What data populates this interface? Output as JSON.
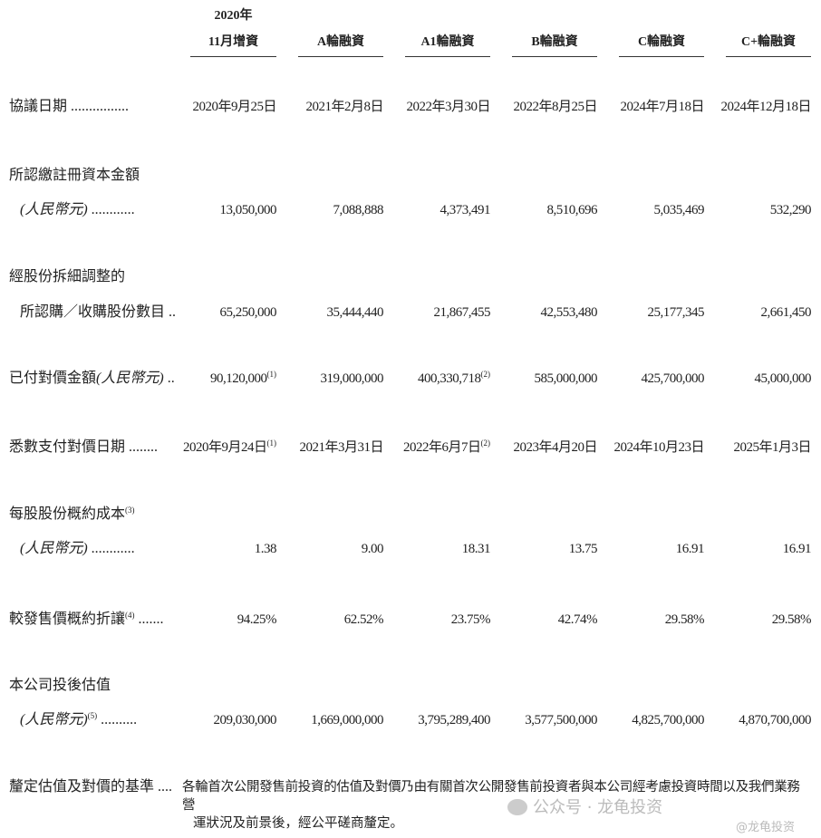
{
  "columns": [
    {
      "line1": "2020年",
      "line2": "11月增資"
    },
    {
      "line1": "",
      "line2": "A輪融資"
    },
    {
      "line1": "",
      "line2": "A1輪融資"
    },
    {
      "line1": "",
      "line2": "B輪融資"
    },
    {
      "line1": "",
      "line2": "C輪融資"
    },
    {
      "line1": "",
      "line2": "C+輪融資"
    }
  ],
  "rows": [
    {
      "label1": "",
      "label2": "協議日期",
      "label2_italic": "",
      "label2_sup": "",
      "dots": "................",
      "values": [
        {
          "v": "2020年9月25日",
          "s": ""
        },
        {
          "v": "2021年2月8日",
          "s": ""
        },
        {
          "v": "2022年3月30日",
          "s": ""
        },
        {
          "v": "2022年8月25日",
          "s": ""
        },
        {
          "v": "2024年7月18日",
          "s": ""
        },
        {
          "v": "2024年12月18日",
          "s": ""
        }
      ]
    },
    {
      "label1": "所認繳註冊資本金額",
      "label2": "",
      "label2_italic": "(人民幣元)",
      "label2_sup": "",
      "dots": "............",
      "values": [
        {
          "v": "13,050,000",
          "s": ""
        },
        {
          "v": "7,088,888",
          "s": ""
        },
        {
          "v": "4,373,491",
          "s": ""
        },
        {
          "v": "8,510,696",
          "s": ""
        },
        {
          "v": "5,035,469",
          "s": ""
        },
        {
          "v": "532,290",
          "s": ""
        }
      ]
    },
    {
      "label1": "經股份拆細調整的",
      "label2": "所認購／收購股份數目",
      "label2_italic": "",
      "label2_sup": "",
      "dots": "..",
      "values": [
        {
          "v": "65,250,000",
          "s": ""
        },
        {
          "v": "35,444,440",
          "s": ""
        },
        {
          "v": "21,867,455",
          "s": ""
        },
        {
          "v": "42,553,480",
          "s": ""
        },
        {
          "v": "25,177,345",
          "s": ""
        },
        {
          "v": "2,661,450",
          "s": ""
        }
      ]
    },
    {
      "label1": "",
      "label2": "已付對價金額",
      "label2_italic": "(人民幣元)",
      "label2_sup": "",
      "dots": "..",
      "values": [
        {
          "v": "90,120,000",
          "s": "(1)"
        },
        {
          "v": "319,000,000",
          "s": ""
        },
        {
          "v": "400,330,718",
          "s": "(2)"
        },
        {
          "v": "585,000,000",
          "s": ""
        },
        {
          "v": "425,700,000",
          "s": ""
        },
        {
          "v": "45,000,000",
          "s": ""
        }
      ]
    },
    {
      "label1": "",
      "label2": "悉數支付對價日期",
      "label2_italic": "",
      "label2_sup": "",
      "dots": "........",
      "values": [
        {
          "v": "2020年9月24日",
          "s": "(1)"
        },
        {
          "v": "2021年3月31日",
          "s": ""
        },
        {
          "v": "2022年6月7日",
          "s": "(2)"
        },
        {
          "v": "2023年4月20日",
          "s": ""
        },
        {
          "v": "2024年10月23日",
          "s": ""
        },
        {
          "v": "2025年1月3日",
          "s": ""
        }
      ]
    },
    {
      "label1": "每股股份概約成本",
      "label1_sup": "(3)",
      "label2": "",
      "label2_italic": "(人民幣元)",
      "label2_sup": "",
      "dots": "............",
      "values": [
        {
          "v": "1.38",
          "s": ""
        },
        {
          "v": "9.00",
          "s": ""
        },
        {
          "v": "18.31",
          "s": ""
        },
        {
          "v": "13.75",
          "s": ""
        },
        {
          "v": "16.91",
          "s": ""
        },
        {
          "v": "16.91",
          "s": ""
        }
      ]
    },
    {
      "label1": "",
      "label2": "較發售價概約折讓",
      "label2_italic": "",
      "label2_sup": "(4)",
      "dots": ".......",
      "values": [
        {
          "v": "94.25%",
          "s": ""
        },
        {
          "v": "62.52%",
          "s": ""
        },
        {
          "v": "23.75%",
          "s": ""
        },
        {
          "v": "42.74%",
          "s": ""
        },
        {
          "v": "29.58%",
          "s": ""
        },
        {
          "v": "29.58%",
          "s": ""
        }
      ]
    },
    {
      "label1": "本公司投後估值",
      "label2": "",
      "label2_italic": "(人民幣元)",
      "label2_sup": "(5)",
      "dots": "..........",
      "values": [
        {
          "v": "209,030,000",
          "s": ""
        },
        {
          "v": "1,669,000,000",
          "s": ""
        },
        {
          "v": "3,795,289,400",
          "s": ""
        },
        {
          "v": "3,577,500,000",
          "s": ""
        },
        {
          "v": "4,825,700,000",
          "s": ""
        },
        {
          "v": "4,870,700,000",
          "s": ""
        }
      ]
    }
  ],
  "basis": {
    "label": "釐定估值及對價的基準",
    "dots": "....",
    "text1": "各輪首次公開發售前投資的估值及對價乃由有關首次公開發售前投資者與本公司經考慮投資時間以及我們業務營",
    "text2": "運狀況及前景後，經公平磋商釐定。"
  },
  "watermark": {
    "main": "公众号 · 龙龟投资",
    "sub": "@龙龟投资"
  }
}
